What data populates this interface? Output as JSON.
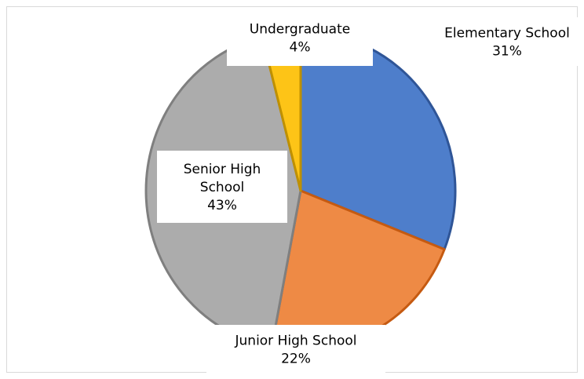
{
  "chart_data": {
    "type": "pie",
    "title": "",
    "slices": [
      {
        "label_lines": [
          "Elementary School"
        ],
        "percent_label": "31%",
        "value": 31,
        "color": "#4e7ecb",
        "stroke": "#2f5597"
      },
      {
        "label_lines": [
          "Junior High School"
        ],
        "percent_label": "22%",
        "value": 22,
        "color": "#ee8a45",
        "stroke": "#c55a11"
      },
      {
        "label_lines": [
          "Senior High",
          "School"
        ],
        "percent_label": "43%",
        "value": 43,
        "color": "#acacac",
        "stroke": "#7f7f7f"
      },
      {
        "label_lines": [
          "Undergraduate"
        ],
        "percent_label": "4%",
        "value": 4,
        "color": "#fdc417",
        "stroke": "#bf9000"
      }
    ],
    "legend": "none",
    "data_labels": "category name and percentage"
  }
}
